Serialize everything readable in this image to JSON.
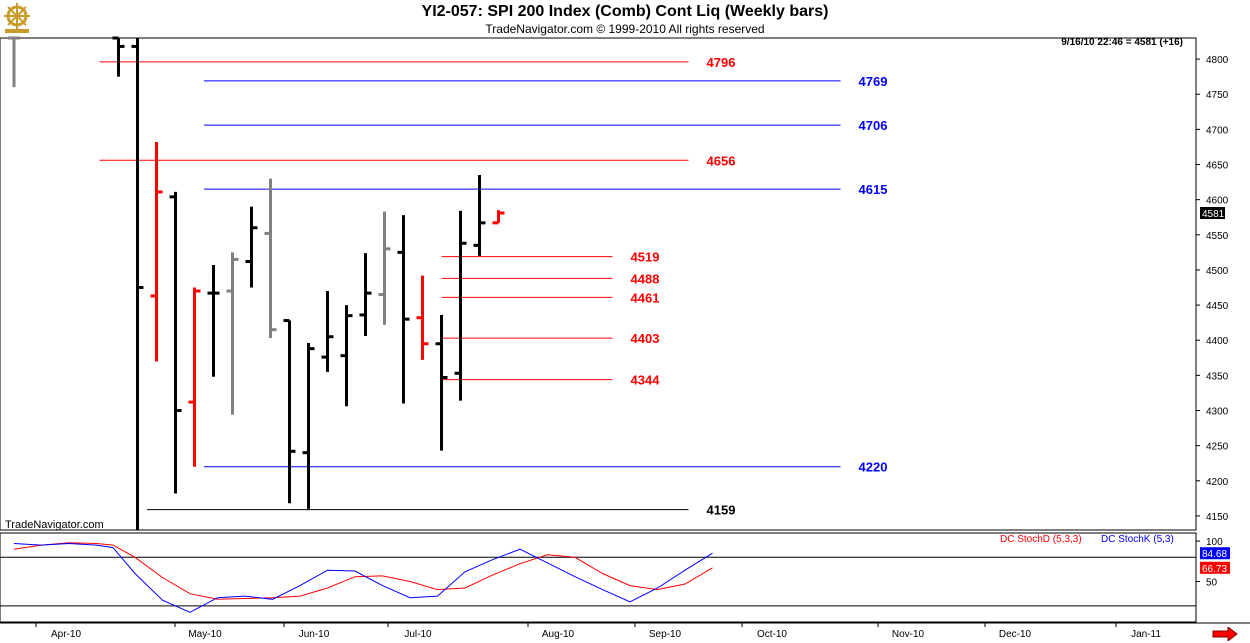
{
  "header": {
    "title": "YI2-057:  SPI 200 Index (Comb) Cont Liq  (Weekly bars)",
    "copyright": "TradeNavigator.com © 1999-2010 All rights reserved",
    "last_quote": "9/16/10 22:46 = 4581 (+16)",
    "watermark": "TradeNavigator.com"
  },
  "icons": {
    "logo": "ship-wheel-logo-icon",
    "scroll": "scroll-right-arrow-icon"
  },
  "colors": {
    "up": "#000000",
    "neutral": "#808080",
    "down": "#ff0000",
    "red_level": "#ff0000",
    "blue_level": "#0000ff",
    "black_level": "#000000"
  },
  "chart_data": {
    "type": "ohlc",
    "price_axis": {
      "ticks": [
        4150,
        4200,
        4250,
        4300,
        4350,
        4400,
        4450,
        4500,
        4550,
        4600,
        4650,
        4700,
        4750,
        4800
      ],
      "range": [
        4130,
        4830
      ],
      "current_price_label": "4581"
    },
    "time_axis": {
      "labels": [
        "Apr-10",
        "May-10",
        "Jun-10",
        "Jul-10",
        "Aug-10",
        "Sep-10",
        "Oct-10",
        "Nov-10",
        "Dec-10",
        "Jan-11"
      ]
    },
    "bars": [
      {
        "week": 0,
        "open": 4830,
        "high": 4830,
        "low": 4760,
        "close": 4830,
        "color": "gray"
      },
      {
        "week": 11,
        "open": 4830,
        "high": 4830,
        "low": 4775,
        "close": 4818,
        "color": "black"
      },
      {
        "week": 13,
        "open": 4818,
        "high": 4830,
        "low": 4130,
        "close": 4475,
        "color": "black"
      },
      {
        "week": 15,
        "open": 4463,
        "high": 4682,
        "low": 4370,
        "close": 4611,
        "color": "red"
      },
      {
        "week": 17,
        "open": 4604,
        "high": 4611,
        "low": 4182,
        "close": 4300,
        "color": "black"
      },
      {
        "week": 19,
        "open": 4312,
        "high": 4475,
        "low": 4220,
        "close": 4470,
        "color": "red"
      },
      {
        "week": 21,
        "open": 4467,
        "high": 4507,
        "low": 4348,
        "close": 4467,
        "color": "black"
      },
      {
        "week": 23,
        "open": 4470,
        "high": 4525,
        "low": 4294,
        "close": 4515,
        "color": "gray"
      },
      {
        "week": 25,
        "open": 4512,
        "high": 4590,
        "low": 4475,
        "close": 4560,
        "color": "black"
      },
      {
        "week": 27,
        "open": 4552,
        "high": 4630,
        "low": 4403,
        "close": 4415,
        "color": "gray"
      },
      {
        "week": 29,
        "open": 4428,
        "high": 4428,
        "low": 4168,
        "close": 4242,
        "color": "black"
      },
      {
        "week": 31,
        "open": 4240,
        "high": 4396,
        "low": 4160,
        "close": 4388,
        "color": "black"
      },
      {
        "week": 33,
        "open": 4376,
        "high": 4470,
        "low": 4355,
        "close": 4405,
        "color": "black"
      },
      {
        "week": 35,
        "open": 4378,
        "high": 4450,
        "low": 4306,
        "close": 4435,
        "color": "black"
      },
      {
        "week": 37,
        "open": 4436,
        "high": 4524,
        "low": 4406,
        "close": 4467,
        "color": "black"
      },
      {
        "week": 39,
        "open": 4465,
        "high": 4583,
        "low": 4422,
        "close": 4530,
        "color": "gray"
      },
      {
        "week": 41,
        "open": 4525,
        "high": 4578,
        "low": 4310,
        "close": 4430,
        "color": "black"
      },
      {
        "week": 43,
        "open": 4432,
        "high": 4492,
        "low": 4372,
        "close": 4395,
        "color": "red"
      },
      {
        "week": 45,
        "open": 4395,
        "high": 4436,
        "low": 4243,
        "close": 4347,
        "color": "black"
      },
      {
        "week": 47,
        "open": 4353,
        "high": 4584,
        "low": 4314,
        "close": 4538,
        "color": "black"
      },
      {
        "week": 49,
        "open": 4535,
        "high": 4635,
        "low": 4520,
        "close": 4567,
        "color": "black"
      },
      {
        "week": 51,
        "open": 4567,
        "high": 4585,
        "low": 4567,
        "close": 4581,
        "color": "red"
      }
    ],
    "levels": [
      {
        "label": "4796",
        "price": 4796,
        "color": "red",
        "from_week": 9,
        "to_week": 71
      },
      {
        "label": "4769",
        "price": 4769,
        "color": "blue",
        "from_week": 20,
        "to_week": 87
      },
      {
        "label": "4706",
        "price": 4706,
        "color": "blue",
        "from_week": 20,
        "to_week": 87
      },
      {
        "label": "4656",
        "price": 4656,
        "color": "red",
        "from_week": 9,
        "to_week": 71
      },
      {
        "label": "4615",
        "price": 4615,
        "color": "blue",
        "from_week": 20,
        "to_week": 87
      },
      {
        "label": "4519",
        "price": 4519,
        "color": "red",
        "from_week": 45,
        "to_week": 63
      },
      {
        "label": "4488",
        "price": 4488,
        "color": "red",
        "from_week": 45,
        "to_week": 63
      },
      {
        "label": "4461",
        "price": 4461,
        "color": "red",
        "from_week": 45,
        "to_week": 63
      },
      {
        "label": "4403",
        "price": 4403,
        "color": "red",
        "from_week": 45,
        "to_week": 63
      },
      {
        "label": "4344",
        "price": 4344,
        "color": "red",
        "from_week": 45,
        "to_week": 63
      },
      {
        "label": "4220",
        "price": 4220,
        "color": "blue",
        "from_week": 20,
        "to_week": 87
      },
      {
        "label": "4159",
        "price": 4159,
        "color": "black",
        "from_week": 14,
        "to_week": 71
      }
    ],
    "stochastic": {
      "legend": [
        {
          "label": "DC StochD (5,3,3)",
          "color": "#ff0000"
        },
        {
          "label": "DC StochK (5,3)",
          "color": "#0000ff"
        }
      ],
      "ticks": [
        50,
        100
      ],
      "range": [
        0,
        110
      ],
      "overbought": 80,
      "oversold": 20,
      "k_label": "84.68",
      "d_label": "66.73",
      "k": [
        [
          0,
          97
        ],
        [
          5,
          95
        ],
        [
          10,
          97
        ],
        [
          15,
          95
        ],
        [
          18,
          92
        ],
        [
          22,
          60
        ],
        [
          27,
          27
        ],
        [
          32,
          12
        ],
        [
          37,
          30
        ],
        [
          42,
          32
        ],
        [
          47,
          28
        ],
        [
          52,
          45
        ],
        [
          57,
          64
        ],
        [
          62,
          63
        ],
        [
          67,
          45
        ],
        [
          72,
          30
        ],
        [
          77,
          32
        ],
        [
          82,
          62
        ],
        [
          87,
          77
        ],
        [
          92,
          90
        ],
        [
          97,
          73
        ],
        [
          102,
          56
        ],
        [
          107,
          40
        ],
        [
          112,
          25
        ],
        [
          117,
          42
        ],
        [
          122,
          64
        ],
        [
          127,
          85
        ]
      ],
      "d": [
        [
          0,
          90
        ],
        [
          5,
          95
        ],
        [
          10,
          98
        ],
        [
          15,
          97
        ],
        [
          18,
          95
        ],
        [
          22,
          80
        ],
        [
          27,
          55
        ],
        [
          32,
          35
        ],
        [
          37,
          28
        ],
        [
          42,
          29
        ],
        [
          47,
          30
        ],
        [
          52,
          32
        ],
        [
          57,
          42
        ],
        [
          62,
          56
        ],
        [
          67,
          57
        ],
        [
          72,
          50
        ],
        [
          77,
          40
        ],
        [
          82,
          42
        ],
        [
          87,
          58
        ],
        [
          92,
          72
        ],
        [
          97,
          83
        ],
        [
          102,
          80
        ],
        [
          107,
          60
        ],
        [
          112,
          45
        ],
        [
          117,
          40
        ],
        [
          122,
          47
        ],
        [
          127,
          67
        ]
      ]
    }
  }
}
